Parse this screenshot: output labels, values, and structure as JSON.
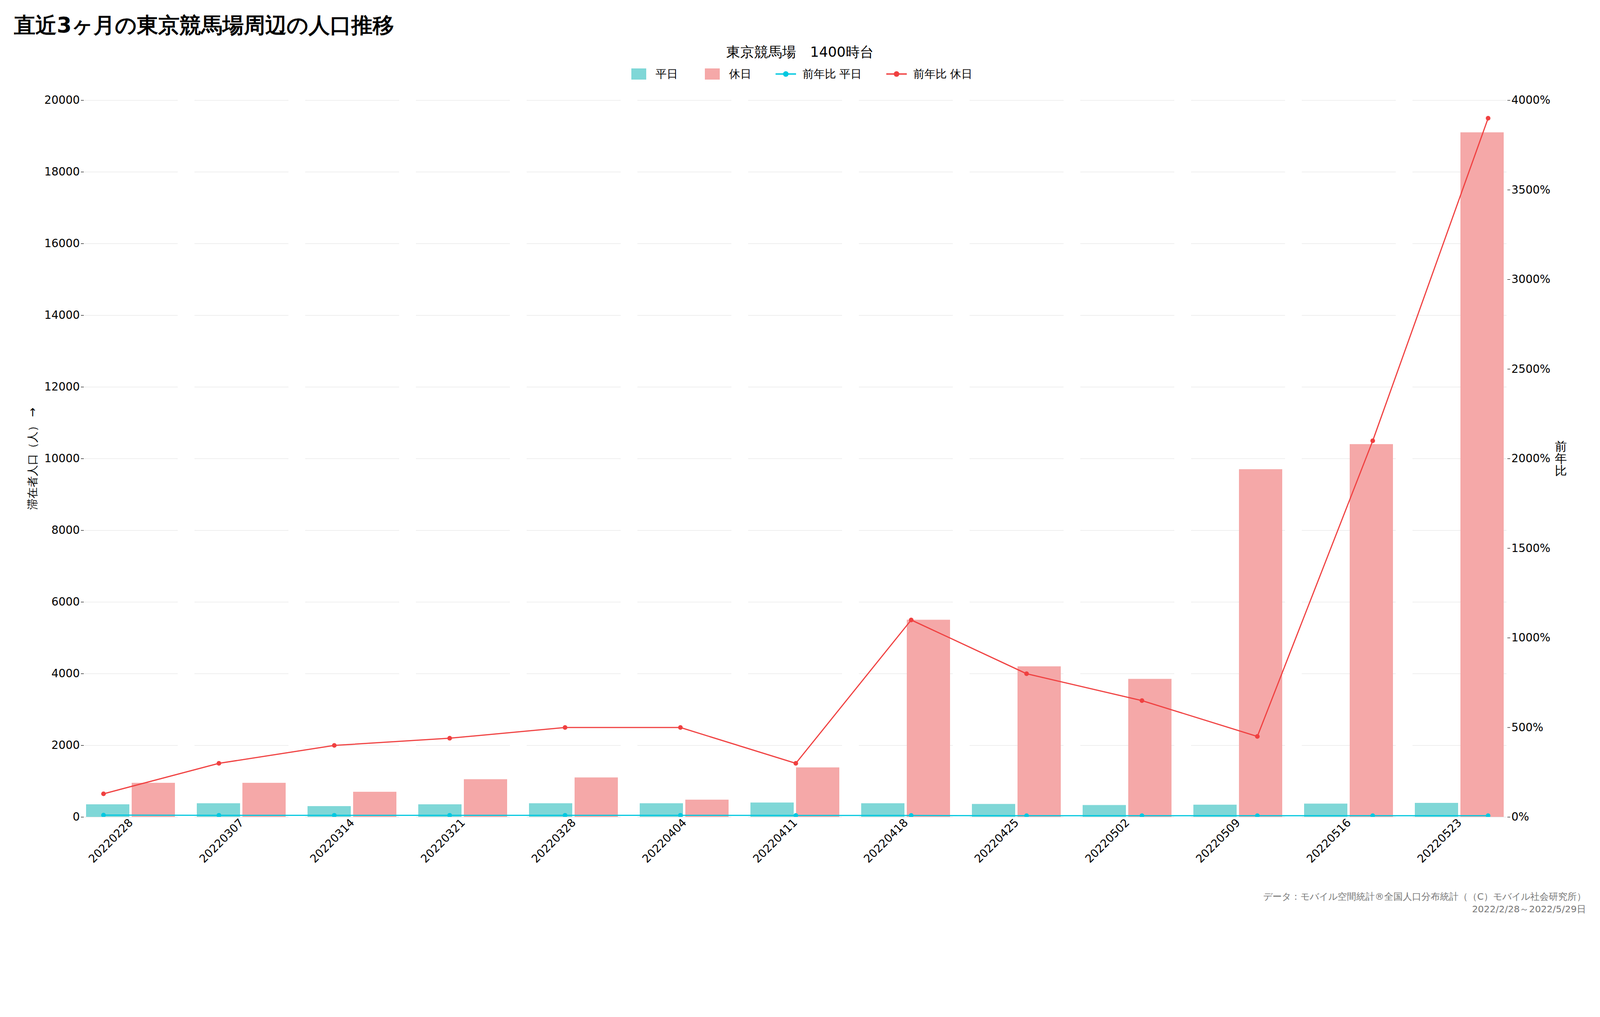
{
  "chart_data": {
    "type": "bar",
    "title": "直近3ヶ月の東京競馬場周辺の人口推移",
    "subtitle": "東京競馬場　1400時台",
    "ylabel": "滞在者人口（人）",
    "y2label": "前\n年\n比",
    "footnote": "データ：モバイル空間統計®全国人口分布統計（（C）モバイル社会研究所）\n2022/2/28～2022/5/29日",
    "categories": [
      "20220228",
      "20220307",
      "20220314",
      "20220321",
      "20220328",
      "20220404",
      "20220411",
      "20220418",
      "20220425",
      "20220502",
      "20220509",
      "20220516",
      "20220523"
    ],
    "series": [
      {
        "name": "平日",
        "type": "bar",
        "color": "#7fd7d7",
        "values": [
          350,
          380,
          300,
          350,
          380,
          380,
          400,
          380,
          360,
          330,
          340,
          370,
          390
        ]
      },
      {
        "name": "休日",
        "type": "bar",
        "color": "#f5a8a8",
        "values": [
          950,
          950,
          700,
          1050,
          1100,
          480,
          1380,
          5500,
          4200,
          3850,
          9700,
          10400,
          19100
        ]
      },
      {
        "name": "前年比 平日",
        "type": "line",
        "axis": "y2",
        "marker": "circle",
        "color": "#00c8e0",
        "values": [
          11,
          10,
          10,
          10,
          10,
          10,
          9,
          9,
          8,
          8,
          8,
          8,
          8
        ]
      },
      {
        "name": "前年比 休日",
        "type": "line",
        "axis": "y2",
        "marker": "circle",
        "color": "#f04040",
        "values": [
          130,
          300,
          400,
          440,
          500,
          500,
          300,
          1100,
          800,
          650,
          450,
          2100,
          3900
        ]
      }
    ],
    "ylim": [
      0,
      20000
    ],
    "yticks": [
      0,
      2000,
      4000,
      6000,
      8000,
      10000,
      12000,
      14000,
      16000,
      18000,
      20000
    ],
    "y2lim": [
      0,
      4000
    ],
    "y2ticks": [
      {
        "value": 0,
        "label": "0%"
      },
      {
        "value": 500,
        "label": "500%"
      },
      {
        "value": 1000,
        "label": "1000%"
      },
      {
        "value": 1500,
        "label": "1500%"
      },
      {
        "value": 2000,
        "label": "2000%"
      },
      {
        "value": 2500,
        "label": "2500%"
      },
      {
        "value": 3000,
        "label": "3000%"
      },
      {
        "value": 3500,
        "label": "3500%"
      },
      {
        "value": 4000,
        "label": "4000%"
      }
    ],
    "grid": true,
    "legend": "top"
  }
}
